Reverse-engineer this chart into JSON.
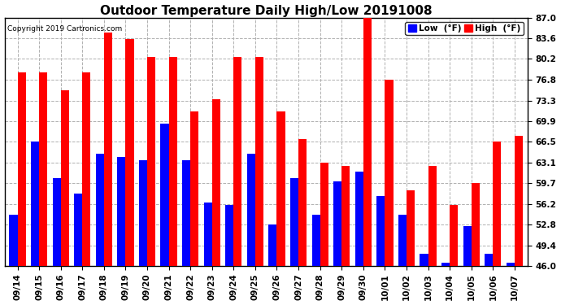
{
  "title": "Outdoor Temperature Daily High/Low 20191008",
  "copyright": "Copyright 2019 Cartronics.com",
  "legend_low": "Low  (°F)",
  "legend_high": "High  (°F)",
  "dates": [
    "09/14",
    "09/15",
    "09/16",
    "09/17",
    "09/18",
    "09/19",
    "09/20",
    "09/21",
    "09/22",
    "09/23",
    "09/24",
    "09/25",
    "09/26",
    "09/27",
    "09/28",
    "09/29",
    "09/30",
    "10/01",
    "10/02",
    "10/03",
    "10/04",
    "10/05",
    "10/06",
    "10/07"
  ],
  "highs": [
    78.0,
    78.0,
    75.0,
    78.0,
    84.5,
    83.5,
    80.5,
    80.5,
    71.5,
    73.5,
    80.5,
    80.5,
    71.5,
    67.0,
    63.0,
    62.5,
    87.0,
    76.8,
    58.5,
    62.5,
    56.0,
    59.7,
    66.5,
    67.5
  ],
  "lows": [
    54.5,
    66.5,
    60.5,
    58.0,
    64.5,
    64.0,
    63.5,
    69.5,
    63.5,
    56.5,
    56.0,
    64.5,
    52.8,
    60.5,
    54.5,
    60.0,
    61.5,
    57.5,
    54.5,
    48.0,
    46.5,
    52.5,
    48.0,
    46.5
  ],
  "ylim_min": 46.0,
  "ylim_max": 87.0,
  "yticks": [
    46.0,
    49.4,
    52.8,
    56.2,
    59.7,
    63.1,
    66.5,
    69.9,
    73.3,
    76.8,
    80.2,
    83.6,
    87.0
  ],
  "bar_color_high": "#ff0000",
  "bar_color_low": "#0000ff",
  "background_color": "#ffffff",
  "plot_bg_color": "#ffffff",
  "grid_color": "#b0b0b0",
  "title_fontsize": 11,
  "tick_fontsize": 7.5,
  "bar_width": 0.38
}
